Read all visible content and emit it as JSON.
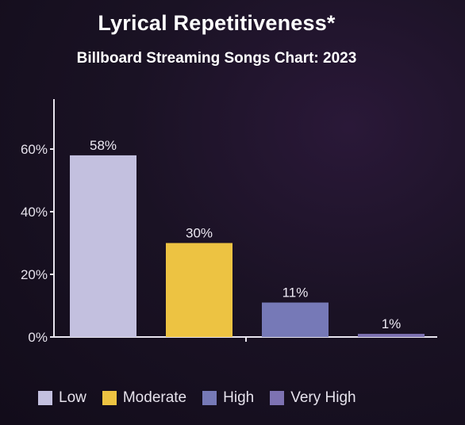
{
  "header": {
    "title": "Lyrical Repetitiveness*",
    "subtitle": "Billboard Streaming Songs Chart: 2023"
  },
  "chart_data": {
    "type": "bar",
    "title": "Lyrical Repetitiveness*",
    "subtitle": "Billboard Streaming Songs Chart: 2023",
    "categories": [
      "Low",
      "Moderate",
      "High",
      "Very High"
    ],
    "values": [
      58,
      30,
      11,
      1
    ],
    "data_labels": [
      "58%",
      "30%",
      "11%",
      "1%"
    ],
    "colors": [
      "#c3c0df",
      "#edc342",
      "#7679b7",
      "#7d72b2"
    ],
    "ylim": [
      0,
      60
    ],
    "yticks": [
      0,
      20,
      40,
      60
    ],
    "ytick_labels": [
      "0%",
      "20%",
      "40%",
      "60%"
    ],
    "xlabel": "",
    "ylabel": "",
    "grid": false,
    "legend_position": "bottom"
  },
  "legend": {
    "items": [
      {
        "label": "Low",
        "color": "#c3c0df"
      },
      {
        "label": "Moderate",
        "color": "#edc342"
      },
      {
        "label": "High",
        "color": "#7679b7"
      },
      {
        "label": "Very High",
        "color": "#7d72b2"
      }
    ]
  }
}
